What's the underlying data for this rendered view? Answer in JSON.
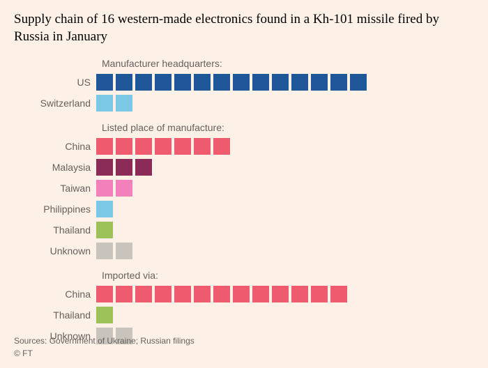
{
  "background_color": "#fdf1e7",
  "title": "Supply chain of 16 western-made electronics found in a Kh-101 missile fired by Russia in January",
  "title_color": "#000000",
  "title_fontsize": 19,
  "label_color": "#66605c",
  "label_fontsize": 14,
  "square_size": 24,
  "square_gap": 4,
  "label_col_width": 118,
  "sections": [
    {
      "header": "Manufacturer headquarters:",
      "rows": [
        {
          "label": "US",
          "count": 14,
          "color": "#1f5799"
        },
        {
          "label": "Switzerland",
          "count": 2,
          "color": "#7ac8e3"
        }
      ]
    },
    {
      "header": "Listed place of manufacture:",
      "rows": [
        {
          "label": "China",
          "count": 7,
          "color": "#ef5b6e"
        },
        {
          "label": "Malaysia",
          "count": 3,
          "color": "#8b2c58"
        },
        {
          "label": "Taiwan",
          "count": 2,
          "color": "#f280bb"
        },
        {
          "label": "Philippines",
          "count": 1,
          "color": "#7ac8e3"
        },
        {
          "label": "Thailand",
          "count": 1,
          "color": "#9cc158"
        },
        {
          "label": "Unknown",
          "count": 2,
          "color": "#c9c3bd"
        }
      ]
    },
    {
      "header": "Imported via:",
      "rows": [
        {
          "label": "China",
          "count": 13,
          "color": "#ef5b6e"
        },
        {
          "label": "Thailand",
          "count": 1,
          "color": "#9cc158"
        },
        {
          "label": "Unknown",
          "count": 2,
          "color": "#c9c3bd"
        }
      ]
    }
  ],
  "footer": {
    "sources": "Sources: Government of Ukraine; Russian filings",
    "copyright": "© FT",
    "color": "#66605c",
    "fontsize": 12
  }
}
